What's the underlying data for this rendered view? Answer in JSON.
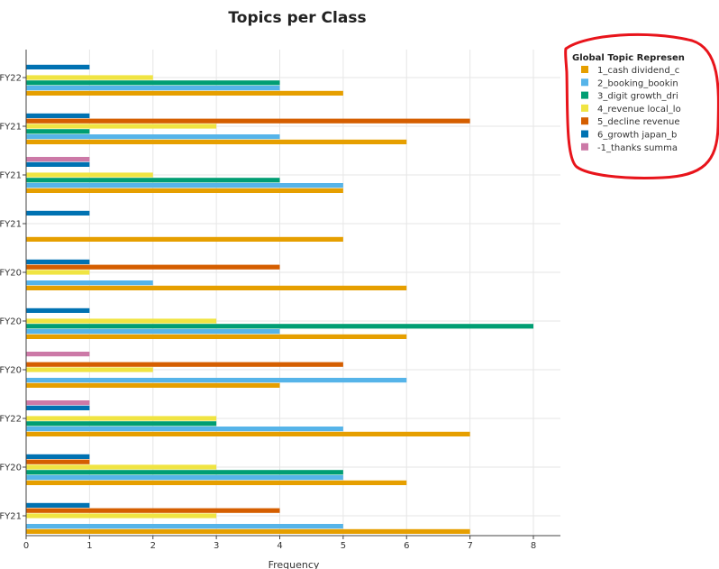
{
  "chart_data": {
    "type": "bar",
    "orientation": "horizontal",
    "title": "Topics per Class",
    "xlabel": "Frequency",
    "ylabel": "",
    "xlim": [
      0,
      8.4
    ],
    "xticks": [
      0,
      1,
      2,
      3,
      4,
      5,
      6,
      7,
      8
    ],
    "grid": true,
    "legend": {
      "title": "Global Topic Represen",
      "placement": "top-right"
    },
    "categories": [
      "FY22",
      "FY21",
      "FY21",
      "FY21",
      "FY20",
      "FY20",
      "FY20",
      "FY22",
      "FY20",
      "FY21"
    ],
    "series": [
      {
        "name": "1_cash dividend_c",
        "color": "#E69F00",
        "values": [
          5,
          6,
          5,
          5,
          6,
          6,
          4,
          7,
          6,
          7
        ]
      },
      {
        "name": "2_booking_bookin",
        "color": "#56B4E9",
        "values": [
          4,
          4,
          5,
          0,
          2,
          4,
          6,
          5,
          5,
          5
        ]
      },
      {
        "name": "3_digit growth_dri",
        "color": "#009E73",
        "values": [
          4,
          1,
          4,
          0,
          0,
          8,
          0,
          3,
          5,
          0
        ]
      },
      {
        "name": "4_revenue local_lo",
        "color": "#F0E442",
        "values": [
          2,
          3,
          2,
          0,
          1,
          3,
          2,
          3,
          3,
          3
        ]
      },
      {
        "name": "5_decline revenue",
        "color": "#D55E00",
        "values": [
          0,
          7,
          0,
          0,
          4,
          0,
          5,
          0,
          1,
          4
        ]
      },
      {
        "name": "6_growth japan_b",
        "color": "#0072B2",
        "values": [
          1,
          1,
          1,
          1,
          1,
          1,
          0,
          1,
          1,
          1
        ]
      },
      {
        "name": "-1_thanks summa",
        "color": "#CC79A7",
        "values": [
          0,
          0,
          1,
          0,
          0,
          0,
          1,
          1,
          0,
          0
        ]
      }
    ]
  },
  "annotation": {
    "color": "#E8141B"
  }
}
